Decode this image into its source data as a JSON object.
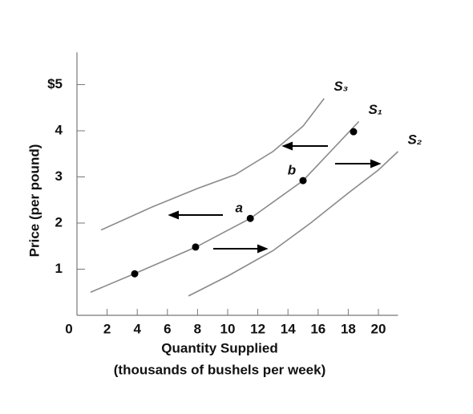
{
  "chart_data": {
    "type": "line",
    "y_label": "Price (per pound)",
    "x_label": [
      "Quantity Supplied",
      "(thousands of bushels per week)"
    ],
    "xlim": [
      0,
      21.3
    ],
    "ylim": [
      0,
      5.7
    ],
    "xticks": [
      0,
      2,
      4,
      6,
      8,
      10,
      12,
      14,
      16,
      18,
      20
    ],
    "yticks": [
      1,
      2,
      3,
      4,
      {
        "value": 5,
        "label": "$5"
      }
    ],
    "series": [
      {
        "name": "S₃",
        "color": "#8a8a8a",
        "x": [
          1.6,
          5,
          8,
          10.5,
          13,
          15,
          16.4
        ],
        "values": [
          1.85,
          2.35,
          2.75,
          3.05,
          3.55,
          4.1,
          4.7
        ]
      },
      {
        "name": "S₁",
        "color": "#8a8a8a",
        "x": [
          0.9,
          3.8,
          7.9,
          11.5,
          15,
          18.7
        ],
        "values": [
          0.5,
          0.9,
          1.48,
          2.1,
          2.92,
          4.2
        ]
      },
      {
        "name": "S₂",
        "color": "#8a8a8a",
        "x": [
          7.4,
          10,
          13,
          15.5,
          18,
          20,
          21.3
        ],
        "values": [
          0.42,
          0.85,
          1.4,
          2.0,
          2.65,
          3.15,
          3.55
        ]
      }
    ],
    "points": {
      "color": "#000000",
      "x": [
        3.83,
        7.87,
        11.5,
        15,
        18.35
      ],
      "values": [
        0.9,
        1.48,
        2.1,
        2.92,
        3.98
      ]
    },
    "annotations": [
      "a",
      "b"
    ]
  }
}
